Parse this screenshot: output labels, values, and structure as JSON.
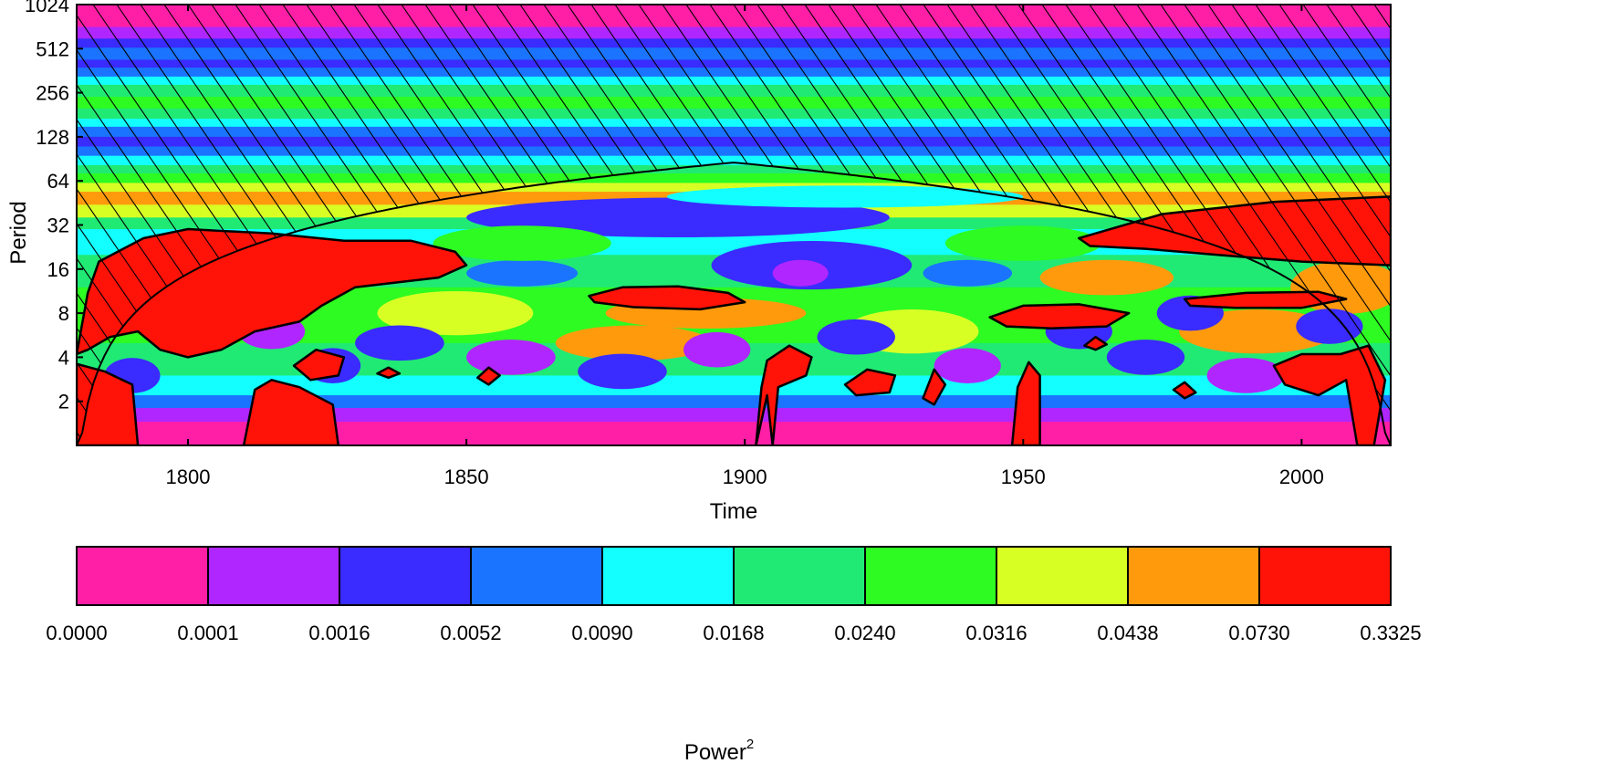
{
  "chart_data": {
    "type": "heatmap",
    "subtype": "wavelet power spectrum",
    "xlabel": "Time",
    "ylabel": "Period",
    "xlim": [
      1780,
      2016
    ],
    "x_ticks": [
      1800,
      1850,
      1900,
      1950,
      2000
    ],
    "y_scale": "log2",
    "ylim": [
      1,
      1024
    ],
    "y_ticks": [
      2,
      4,
      8,
      16,
      32,
      64,
      128,
      256,
      512,
      1024
    ],
    "y_tick_labels": [
      "2",
      "4",
      "8",
      "16",
      "32",
      "64",
      "128",
      "256",
      "512",
      "1024"
    ],
    "cone_of_influence": "hatched",
    "colorbar": {
      "title": "Power",
      "title_superscript": "2",
      "levels": [
        "0.0000",
        "0.0001",
        "0.0016",
        "0.0052",
        "0.0090",
        "0.0168",
        "0.0240",
        "0.0316",
        "0.0438",
        "0.0730",
        "0.3325"
      ],
      "colors": [
        "#ff1fa6",
        "#b026ff",
        "#3a2bff",
        "#1a74ff",
        "#13ffff",
        "#20ea74",
        "#2dfb22",
        "#d8ff24",
        "#ff9a0d",
        "#ff1208"
      ]
    },
    "period_bands": [
      {
        "from": 720,
        "to": 1024,
        "level": 0
      },
      {
        "from": 600,
        "to": 720,
        "level": 1
      },
      {
        "from": 520,
        "to": 600,
        "level": 2
      },
      {
        "from": 430,
        "to": 520,
        "level": 3
      },
      {
        "from": 380,
        "to": 430,
        "level": 2
      },
      {
        "from": 330,
        "to": 380,
        "level": 3
      },
      {
        "from": 290,
        "to": 330,
        "level": 4
      },
      {
        "from": 240,
        "to": 290,
        "level": 5
      },
      {
        "from": 200,
        "to": 240,
        "level": 6
      },
      {
        "from": 170,
        "to": 200,
        "level": 5
      },
      {
        "from": 150,
        "to": 170,
        "level": 4
      },
      {
        "from": 128,
        "to": 150,
        "level": 3
      },
      {
        "from": 110,
        "to": 128,
        "level": 2
      },
      {
        "from": 95,
        "to": 110,
        "level": 3
      },
      {
        "from": 82,
        "to": 95,
        "level": 4
      },
      {
        "from": 72,
        "to": 82,
        "level": 5
      },
      {
        "from": 62,
        "to": 72,
        "level": 6
      },
      {
        "from": 54,
        "to": 62,
        "level": 7
      },
      {
        "from": 44,
        "to": 54,
        "level": 8
      },
      {
        "from": 36,
        "to": 44,
        "level": 7
      },
      {
        "from": 30,
        "to": 36,
        "level": 5
      },
      {
        "from": 20,
        "to": 30,
        "level": 4
      },
      {
        "from": 12,
        "to": 20,
        "level": 5
      },
      {
        "from": 5,
        "to": 12,
        "level": 6
      },
      {
        "from": 3,
        "to": 5,
        "level": 5
      },
      {
        "from": 2.2,
        "to": 3,
        "level": 4
      },
      {
        "from": 1.8,
        "to": 2.2,
        "level": 3
      },
      {
        "from": 1.45,
        "to": 1.8,
        "level": 1
      },
      {
        "from": 1,
        "to": 1.45,
        "level": 0
      }
    ],
    "blobs": [
      {
        "x": 1888,
        "p": 36,
        "rx": 38,
        "ry": 0.45,
        "level": 2
      },
      {
        "x": 1912,
        "p": 17,
        "rx": 18,
        "ry": 0.55,
        "level": 2
      },
      {
        "x": 1910,
        "p": 15,
        "rx": 5,
        "ry": 0.3,
        "level": 1
      },
      {
        "x": 1860,
        "p": 15,
        "rx": 10,
        "ry": 0.3,
        "level": 3
      },
      {
        "x": 1940,
        "p": 15,
        "rx": 8,
        "ry": 0.3,
        "level": 3
      },
      {
        "x": 1918,
        "p": 50,
        "rx": 32,
        "ry": 0.25,
        "level": 4
      },
      {
        "x": 1950,
        "p": 24,
        "rx": 14,
        "ry": 0.4,
        "level": 6
      },
      {
        "x": 1860,
        "p": 24,
        "rx": 16,
        "ry": 0.4,
        "level": 6
      },
      {
        "x": 1893,
        "p": 8,
        "rx": 18,
        "ry": 0.35,
        "level": 8
      },
      {
        "x": 1965,
        "p": 14,
        "rx": 12,
        "ry": 0.4,
        "level": 8
      },
      {
        "x": 1992,
        "p": 6,
        "rx": 14,
        "ry": 0.5,
        "level": 8
      },
      {
        "x": 1880,
        "p": 5,
        "rx": 14,
        "ry": 0.4,
        "level": 8
      },
      {
        "x": 1848,
        "p": 8,
        "rx": 14,
        "ry": 0.5,
        "level": 7
      },
      {
        "x": 1930,
        "p": 6,
        "rx": 12,
        "ry": 0.5,
        "level": 7
      },
      {
        "x": 2008,
        "p": 12,
        "rx": 10,
        "ry": 0.6,
        "level": 8
      },
      {
        "x": 1838,
        "p": 5,
        "rx": 8,
        "ry": 0.4,
        "level": 2
      },
      {
        "x": 1858,
        "p": 4,
        "rx": 8,
        "ry": 0.4,
        "level": 1
      },
      {
        "x": 1878,
        "p": 3.2,
        "rx": 8,
        "ry": 0.4,
        "level": 2
      },
      {
        "x": 1895,
        "p": 4.5,
        "rx": 6,
        "ry": 0.4,
        "level": 1
      },
      {
        "x": 1920,
        "p": 5.5,
        "rx": 7,
        "ry": 0.4,
        "level": 2
      },
      {
        "x": 1940,
        "p": 3.5,
        "rx": 6,
        "ry": 0.4,
        "level": 1
      },
      {
        "x": 1972,
        "p": 4,
        "rx": 7,
        "ry": 0.4,
        "level": 2
      },
      {
        "x": 1990,
        "p": 3,
        "rx": 7,
        "ry": 0.4,
        "level": 1
      },
      {
        "x": 2005,
        "p": 6.5,
        "rx": 6,
        "ry": 0.4,
        "level": 2
      },
      {
        "x": 1815,
        "p": 6,
        "rx": 6,
        "ry": 0.4,
        "level": 1
      },
      {
        "x": 1790,
        "p": 3,
        "rx": 5,
        "ry": 0.4,
        "level": 2
      },
      {
        "x": 1826,
        "p": 3.5,
        "rx": 5,
        "ry": 0.4,
        "level": 2
      },
      {
        "x": 1960,
        "p": 6,
        "rx": 6,
        "ry": 0.4,
        "level": 2
      },
      {
        "x": 1980,
        "p": 8,
        "rx": 6,
        "ry": 0.4,
        "level": 2
      }
    ],
    "significant_regions": [
      {
        "name": "region-early-large",
        "points": [
          [
            1780,
            4.2
          ],
          [
            1782,
            11
          ],
          [
            1784,
            18
          ],
          [
            1792,
            26
          ],
          [
            1800,
            30
          ],
          [
            1815,
            28
          ],
          [
            1828,
            25
          ],
          [
            1840,
            25
          ],
          [
            1848,
            21
          ],
          [
            1850,
            17
          ],
          [
            1845,
            14
          ],
          [
            1830,
            12
          ],
          [
            1824,
            9
          ],
          [
            1820,
            7
          ],
          [
            1812,
            6
          ],
          [
            1806,
            4.5
          ],
          [
            1800,
            4
          ],
          [
            1795,
            4.5
          ],
          [
            1791,
            6
          ],
          [
            1786,
            5.5
          ],
          [
            1782,
            4.5
          ]
        ]
      },
      {
        "name": "region-1880-period-10",
        "points": [
          [
            1872,
            10.5
          ],
          [
            1878,
            12
          ],
          [
            1888,
            12.2
          ],
          [
            1897,
            11
          ],
          [
            1900,
            9.5
          ],
          [
            1892,
            8.5
          ],
          [
            1880,
            8.8
          ],
          [
            1873,
            9.5
          ]
        ]
      },
      {
        "name": "region-1955-period-8",
        "points": [
          [
            1944,
            7.5
          ],
          [
            1950,
            9
          ],
          [
            1960,
            9.2
          ],
          [
            1969,
            8
          ],
          [
            1965,
            6.5
          ],
          [
            1955,
            6.3
          ],
          [
            1947,
            6.5
          ]
        ]
      },
      {
        "name": "region-1995-period-10",
        "points": [
          [
            1979,
            10
          ],
          [
            1990,
            11
          ],
          [
            2003,
            11.2
          ],
          [
            2008,
            10
          ],
          [
            2000,
            8.7
          ],
          [
            1988,
            8.7
          ],
          [
            1980,
            9
          ]
        ]
      },
      {
        "name": "region-right-upper",
        "points": [
          [
            1960,
            26
          ],
          [
            1975,
            38
          ],
          [
            1995,
            46
          ],
          [
            2016,
            50
          ],
          [
            2016,
            17
          ],
          [
            2000,
            18
          ],
          [
            1985,
            20
          ],
          [
            1972,
            22
          ],
          [
            1962,
            23
          ]
        ]
      },
      {
        "name": "region-1823",
        "points": [
          [
            1819,
            3.5
          ],
          [
            1823,
            4.5
          ],
          [
            1828,
            4
          ],
          [
            1827,
            3
          ],
          [
            1822,
            2.8
          ]
        ]
      },
      {
        "name": "region-1855",
        "points": [
          [
            1852,
            2.9
          ],
          [
            1854,
            3.4
          ],
          [
            1856,
            3
          ],
          [
            1854,
            2.6
          ]
        ]
      },
      {
        "name": "region-1836",
        "points": [
          [
            1834,
            3.1
          ],
          [
            1836,
            3.4
          ],
          [
            1838,
            3.1
          ],
          [
            1836,
            2.9
          ]
        ]
      },
      {
        "name": "region-1902-stem",
        "points": [
          [
            1902,
            1
          ],
          [
            1903,
            2.5
          ],
          [
            1904,
            3.8
          ],
          [
            1908,
            4.8
          ],
          [
            1912,
            4
          ],
          [
            1911,
            3
          ],
          [
            1906,
            2.5
          ],
          [
            1905,
            1
          ],
          [
            1904,
            2.2
          ]
        ]
      },
      {
        "name": "region-1922",
        "points": [
          [
            1918,
            2.6
          ],
          [
            1922,
            3.3
          ],
          [
            1927,
            3
          ],
          [
            1926,
            2.3
          ],
          [
            1920,
            2.2
          ]
        ]
      },
      {
        "name": "region-1934",
        "points": [
          [
            1932,
            2.1
          ],
          [
            1934,
            3.3
          ],
          [
            1936,
            2.6
          ],
          [
            1934,
            1.9
          ]
        ]
      },
      {
        "name": "region-1950-stem",
        "points": [
          [
            1948,
            1
          ],
          [
            1949,
            2.5
          ],
          [
            1951,
            3.7
          ],
          [
            1953,
            3
          ],
          [
            1953,
            1
          ]
        ]
      },
      {
        "name": "region-1963",
        "points": [
          [
            1961,
            4.8
          ],
          [
            1963,
            5.5
          ],
          [
            1965,
            4.9
          ],
          [
            1963,
            4.5
          ]
        ]
      },
      {
        "name": "region-1980",
        "points": [
          [
            1977,
            2.4
          ],
          [
            1979,
            2.7
          ],
          [
            1981,
            2.3
          ],
          [
            1979,
            2.1
          ]
        ]
      },
      {
        "name": "region-2005-right",
        "points": [
          [
            1995,
            3.5
          ],
          [
            2000,
            4.2
          ],
          [
            2007,
            4.2
          ],
          [
            2012,
            4.8
          ],
          [
            2015,
            2.8
          ],
          [
            2013,
            1
          ],
          [
            2010,
            1
          ],
          [
            2008,
            2.8
          ],
          [
            2003,
            2.2
          ],
          [
            1997,
            2.6
          ]
        ]
      },
      {
        "name": "region-left-edge-small",
        "points": [
          [
            1780,
            1
          ],
          [
            1780,
            3.6
          ],
          [
            1785,
            3.2
          ],
          [
            1790,
            2.6
          ],
          [
            1791,
            1
          ]
        ]
      },
      {
        "name": "region-1810-1826",
        "points": [
          [
            1810,
            1
          ],
          [
            1812,
            2.4
          ],
          [
            1815,
            2.8
          ],
          [
            1820,
            2.5
          ],
          [
            1826,
            1.9
          ],
          [
            1827,
            1
          ]
        ]
      }
    ]
  }
}
